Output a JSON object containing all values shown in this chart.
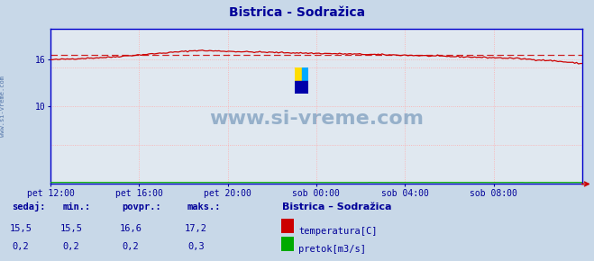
{
  "title": "Bistrica - Sodražica",
  "title_color": "#000099",
  "bg_color": "#c8d8e8",
  "plot_bg_color": "#e0e8f0",
  "grid_color": "#ffaaaa",
  "xlabel_color": "#000099",
  "ylabel_color": "#000099",
  "x_ticks_labels": [
    "pet 12:00",
    "pet 16:00",
    "pet 20:00",
    "sob 00:00",
    "sob 04:00",
    "sob 08:00"
  ],
  "y_ticks": [
    10,
    16
  ],
  "ylim": [
    0,
    20
  ],
  "temp_color": "#cc0000",
  "pretok_color": "#00aa00",
  "dashed_line_color": "#cc0000",
  "dashed_line_value": 16.6,
  "watermark": "www.si-vreme.com",
  "watermark_color": "#7799bb",
  "sidebar_text": "www.si-vreme.com",
  "sidebar_color": "#5577aa",
  "legend_title": "Bistrica – Sodražica",
  "legend_title_color": "#000099",
  "legend_items": [
    {
      "label": "temperatura[C]",
      "color": "#cc0000"
    },
    {
      "label": "pretok[m3/s]",
      "color": "#00aa00"
    }
  ],
  "stats_headers": [
    "sedaj:",
    "min.:",
    "povpr.:",
    "maks.:"
  ],
  "stats_temp": [
    "15,5",
    "15,5",
    "16,6",
    "17,2"
  ],
  "stats_pretok": [
    "0,2",
    "0,2",
    "0,2",
    "0,3"
  ],
  "stats_color": "#000099",
  "axis_border_color": "#0000cc",
  "arrow_color": "#cc0000",
  "icon_colors": [
    "#ffdd00",
    "#00aaff",
    "#0000aa"
  ]
}
